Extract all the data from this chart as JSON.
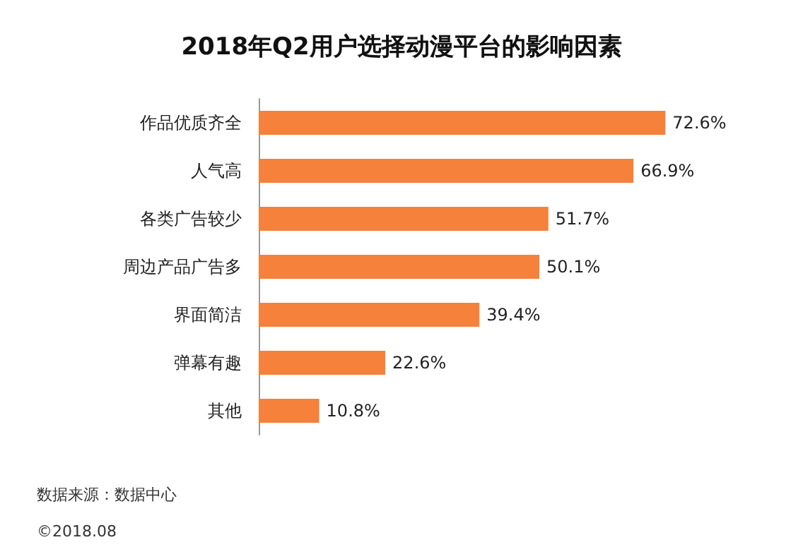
{
  "chart_data": {
    "type": "bar",
    "orientation": "horizontal",
    "title": "2018年Q2用户选择动漫平台的影响因素",
    "categories": [
      "作品优质齐全",
      "人气高",
      "各类广告较少",
      "周边产品广告多",
      "界面简洁",
      "弹幕有趣",
      "其他"
    ],
    "values": [
      72.6,
      66.9,
      51.7,
      50.1,
      39.4,
      22.6,
      10.8
    ],
    "value_labels": [
      "72.6%",
      "66.9%",
      "51.7%",
      "50.1%",
      "39.4%",
      "22.6%",
      "10.8%"
    ],
    "color": "#f5813a",
    "tick_labels": "y",
    "annotations": [
      "数据来源：数据中心",
      "©2018.08"
    ]
  }
}
